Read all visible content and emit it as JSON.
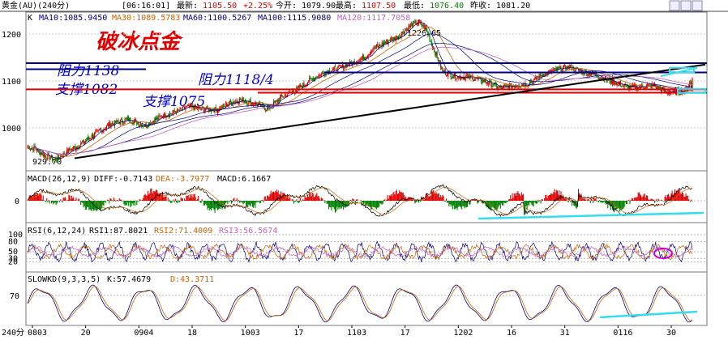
{
  "header": {
    "instrument": "黄金(AU)(240分)",
    "time": "[06:16:01]",
    "latest_label": "最新:",
    "latest_value": "1105.50",
    "change": "+2.25%",
    "open_label": "今开:",
    "open_value": "1079.90",
    "high_label": "最高:",
    "high_value": "1107.50",
    "low_label": "最低:",
    "low_value": "1076.40",
    "prev_label": "昨收:",
    "prev_value": "1081.20"
  },
  "price_panel": {
    "prefix": "K",
    "ma_labels": [
      {
        "text": "MA10:1085.9450",
        "color": "#000080"
      },
      {
        "text": "MA30:1089.5783",
        "color": "#d06000"
      },
      {
        "text": "MA60:1100.5267",
        "color": "#000080"
      },
      {
        "text": "MA100:1115.9080",
        "color": "#000080"
      },
      {
        "text": "MA120:1117.7058",
        "color": "#c060c0"
      }
    ],
    "title_annotation": "破冰点金",
    "peak_label": "1226.65",
    "low_label": "929.70",
    "annotations": {
      "resistance_1138": "阻力1138",
      "resistance_1118": "阻力1118/4",
      "support_1082": "支撑1082",
      "support_1075": "支撑1075"
    }
  },
  "macd_panel": {
    "label": "MACD(26,12,9)",
    "diff": "DIFF:-0.7143",
    "dea": "DEA:-3.7977",
    "macd": "MACD:6.1667"
  },
  "rsi_panel": {
    "label": "RSI(6,12,24)",
    "rsi1": "RSI1:87.8021",
    "rsi2": "RSI2:71.4009",
    "rsi3": "RSI3:56.5674"
  },
  "kd_panel": {
    "label": "SLOWKD(9,3,3,5)",
    "k": "K:57.4679",
    "d": "D:43.3711"
  },
  "footer": {
    "period": "240分"
  },
  "colors": {
    "up": "#e00000",
    "down": "#008000",
    "resistance": "#000080",
    "support": "#e00000",
    "trend": "#000000",
    "cyan": "#33ddee"
  },
  "chart_data": {
    "type": "candlestick",
    "y_ticks": [
      1000,
      1100,
      1200
    ],
    "ylim": [
      910,
      1245
    ],
    "x_tick_labels": [
      "0803",
      "20",
      "0904",
      "18",
      "1003",
      "17",
      "1103",
      "17",
      "1202",
      "16",
      "31",
      "0116",
      "30"
    ],
    "anchors": [
      [
        0,
        960
      ],
      [
        8,
        955
      ],
      [
        18,
        942
      ],
      [
        30,
        932
      ],
      [
        44,
        950
      ],
      [
        58,
        965
      ],
      [
        72,
        985
      ],
      [
        90,
        1008
      ],
      [
        110,
        1018
      ],
      [
        128,
        1005
      ],
      [
        146,
        1025
      ],
      [
        162,
        1035
      ],
      [
        176,
        1045
      ],
      [
        190,
        1040
      ],
      [
        206,
        1038
      ],
      [
        222,
        1055
      ],
      [
        232,
        1060
      ],
      [
        250,
        1050
      ],
      [
        262,
        1040
      ],
      [
        276,
        1065
      ],
      [
        292,
        1080
      ],
      [
        310,
        1105
      ],
      [
        326,
        1120
      ],
      [
        342,
        1130
      ],
      [
        356,
        1140
      ],
      [
        366,
        1150
      ],
      [
        378,
        1170
      ],
      [
        392,
        1185
      ],
      [
        404,
        1195
      ],
      [
        418,
        1220
      ],
      [
        426,
        1226
      ],
      [
        434,
        1210
      ],
      [
        442,
        1170
      ],
      [
        452,
        1120
      ],
      [
        466,
        1110
      ],
      [
        482,
        1108
      ],
      [
        498,
        1100
      ],
      [
        514,
        1085
      ],
      [
        530,
        1090
      ],
      [
        546,
        1095
      ],
      [
        562,
        1115
      ],
      [
        578,
        1125
      ],
      [
        590,
        1130
      ],
      [
        602,
        1120
      ],
      [
        616,
        1115
      ],
      [
        628,
        1105
      ],
      [
        642,
        1095
      ],
      [
        656,
        1085
      ],
      [
        668,
        1088
      ],
      [
        682,
        1090
      ],
      [
        696,
        1076
      ],
      [
        712,
        1078
      ],
      [
        716,
        1080
      ],
      [
        724,
        1102
      ]
    ],
    "n_bars": 725,
    "support_lines": [
      1082,
      1075
    ],
    "resistance_lines": [
      1138,
      1118
    ],
    "macd_last": 6.1667,
    "rsi_ticks": [
      100,
      80,
      50,
      30,
      20
    ],
    "kd_tick": 70
  }
}
